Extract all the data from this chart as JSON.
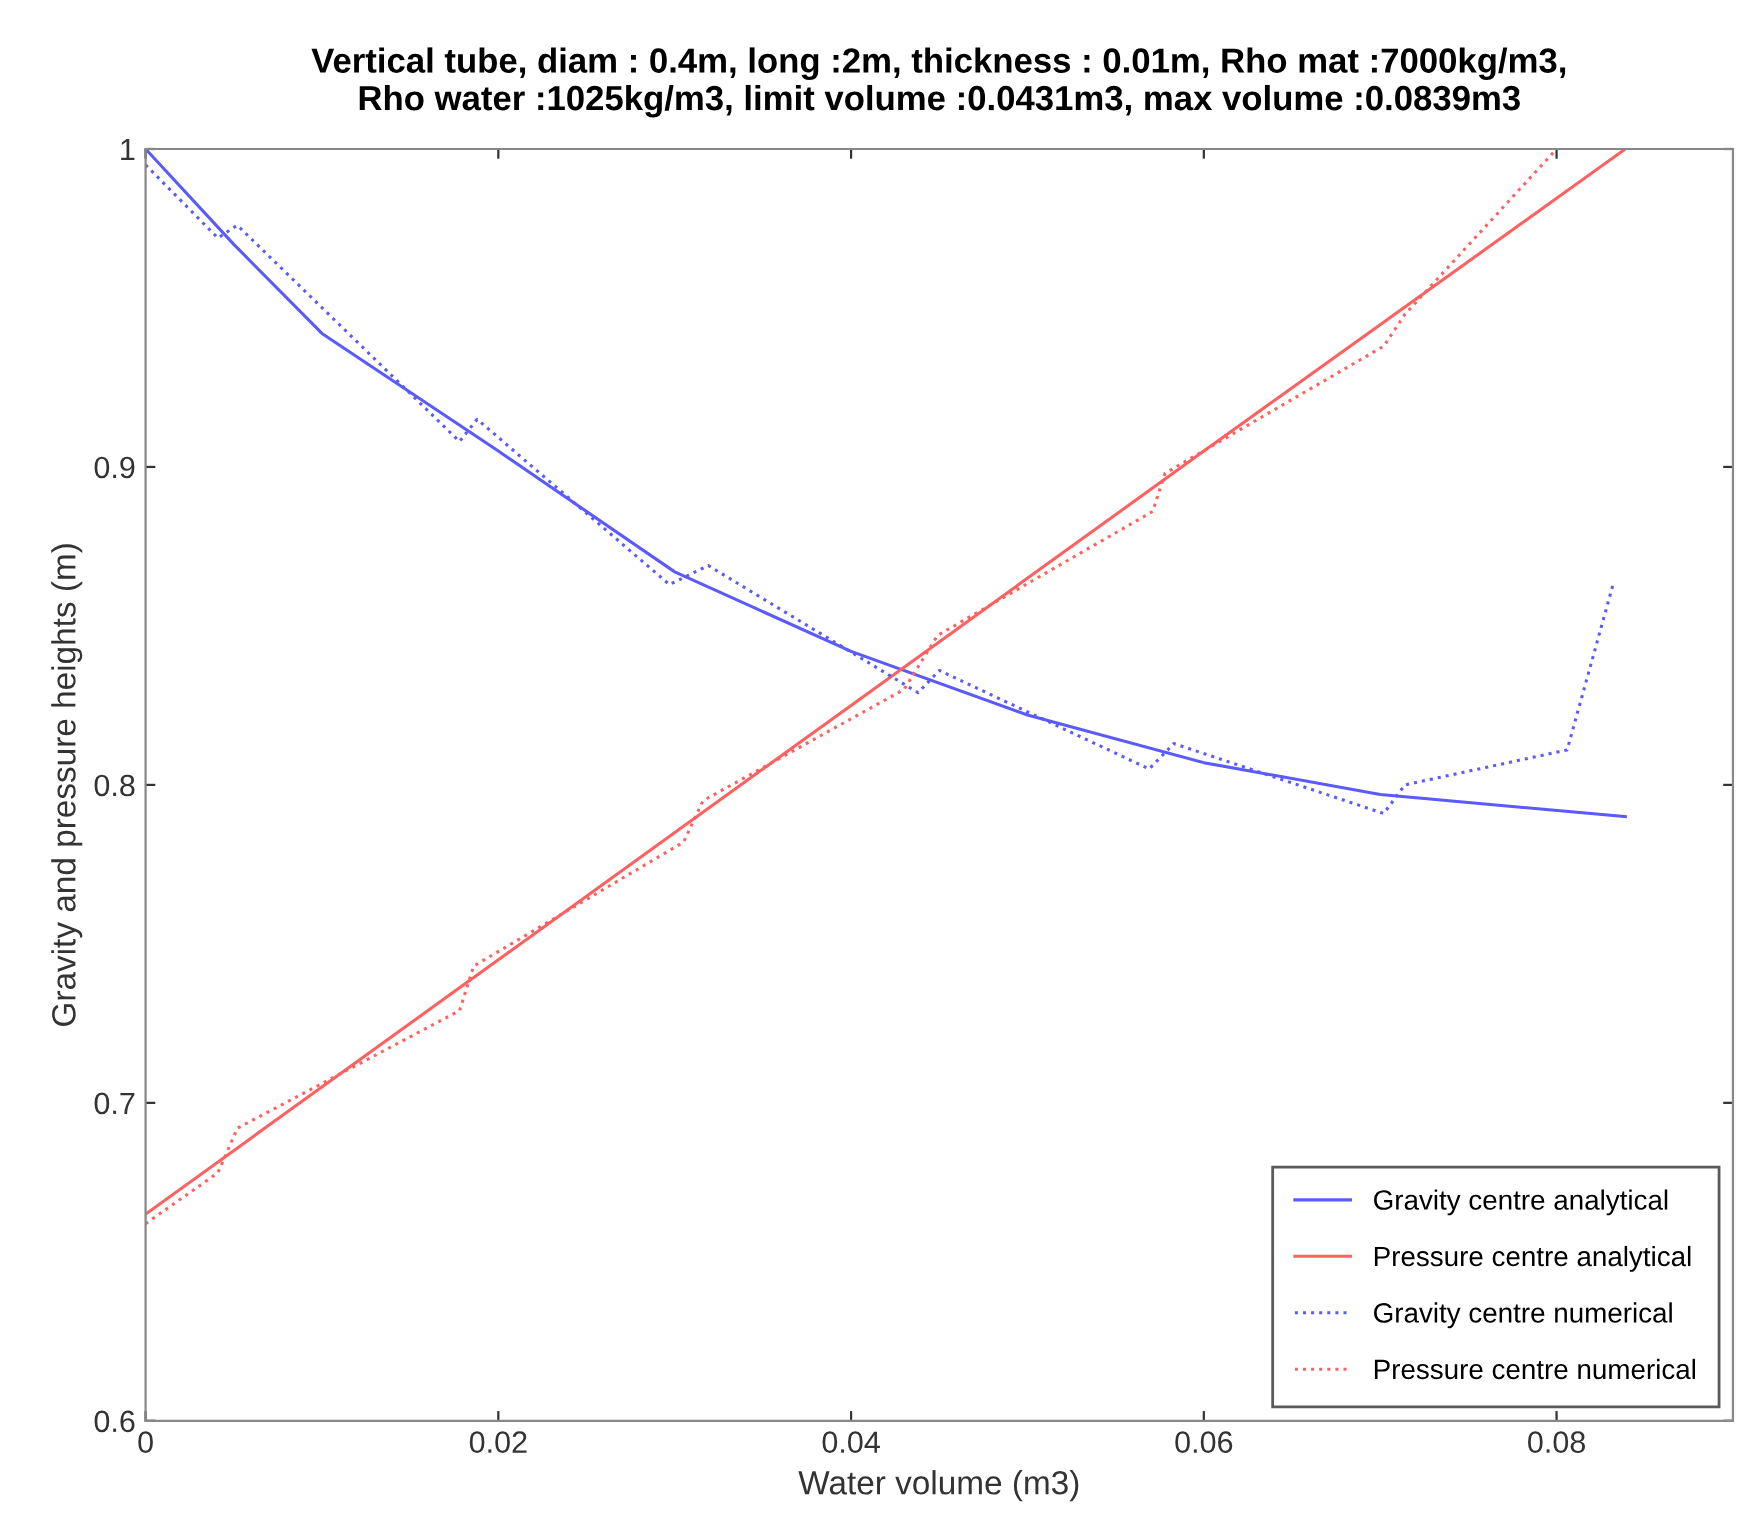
{
  "chart_data": {
    "type": "line",
    "title": "Vertical tube, diam : 0.4m, long :2m, thickness : 0.01m, Rho mat :7000kg/m3,\nRho water :1025kg/m3, limit volume :0.0431m3, max volume :0.0839m3",
    "xlabel": "Water volume (m3)",
    "ylabel": "Gravity and pressure heights (m)",
    "xlim": [
      0,
      0.09
    ],
    "xticks": [
      0,
      0.02,
      0.04,
      0.06,
      0.08
    ],
    "ylim": [
      0.6,
      1
    ],
    "yticks": [
      0.6,
      0.7,
      0.8,
      0.9,
      1
    ],
    "grid": false,
    "legend": "bottom right",
    "marker": "none",
    "series": [
      {
        "name": "Gravity centre analytical",
        "color": "#5a5aff",
        "line_style": "solid",
        "x": [
          0,
          0.005,
          0.01,
          0.02,
          0.03,
          0.04,
          0.05,
          0.06,
          0.07,
          0.0839
        ],
        "values": [
          1.0,
          0.97,
          0.942,
          0.905,
          0.867,
          0.842,
          0.822,
          0.807,
          0.797,
          0.79
        ]
      },
      {
        "name": "Pressure centre analytical",
        "color": "#ff6060",
        "line_style": "solid",
        "x": [
          0,
          0.02,
          0.04,
          0.06,
          0.0839
        ],
        "values": [
          0.665,
          0.745,
          0.825,
          0.905,
          1.0
        ]
      },
      {
        "name": "Gravity centre numerical",
        "color": "#5a5aff",
        "line_style": "dotted",
        "x": [
          0,
          0.0041,
          0.0052,
          0.0178,
          0.0188,
          0.0297,
          0.0319,
          0.0438,
          0.045,
          0.0569,
          0.0583,
          0.0702,
          0.0714,
          0.0806,
          0.0832
        ],
        "values": [
          0.995,
          0.972,
          0.976,
          0.908,
          0.915,
          0.863,
          0.869,
          0.829,
          0.836,
          0.805,
          0.813,
          0.791,
          0.8,
          0.811,
          0.863
        ]
      },
      {
        "name": "Pressure centre numerical",
        "color": "#ff6060",
        "line_style": "dotted",
        "x": [
          0,
          0.0041,
          0.0052,
          0.0178,
          0.0186,
          0.0305,
          0.0316,
          0.043,
          0.0449,
          0.0571,
          0.0578,
          0.0702,
          0.0714,
          0.08
        ],
        "values": [
          0.662,
          0.678,
          0.692,
          0.729,
          0.743,
          0.782,
          0.795,
          0.83,
          0.847,
          0.886,
          0.898,
          0.938,
          0.948,
          1.0
        ]
      }
    ]
  }
}
